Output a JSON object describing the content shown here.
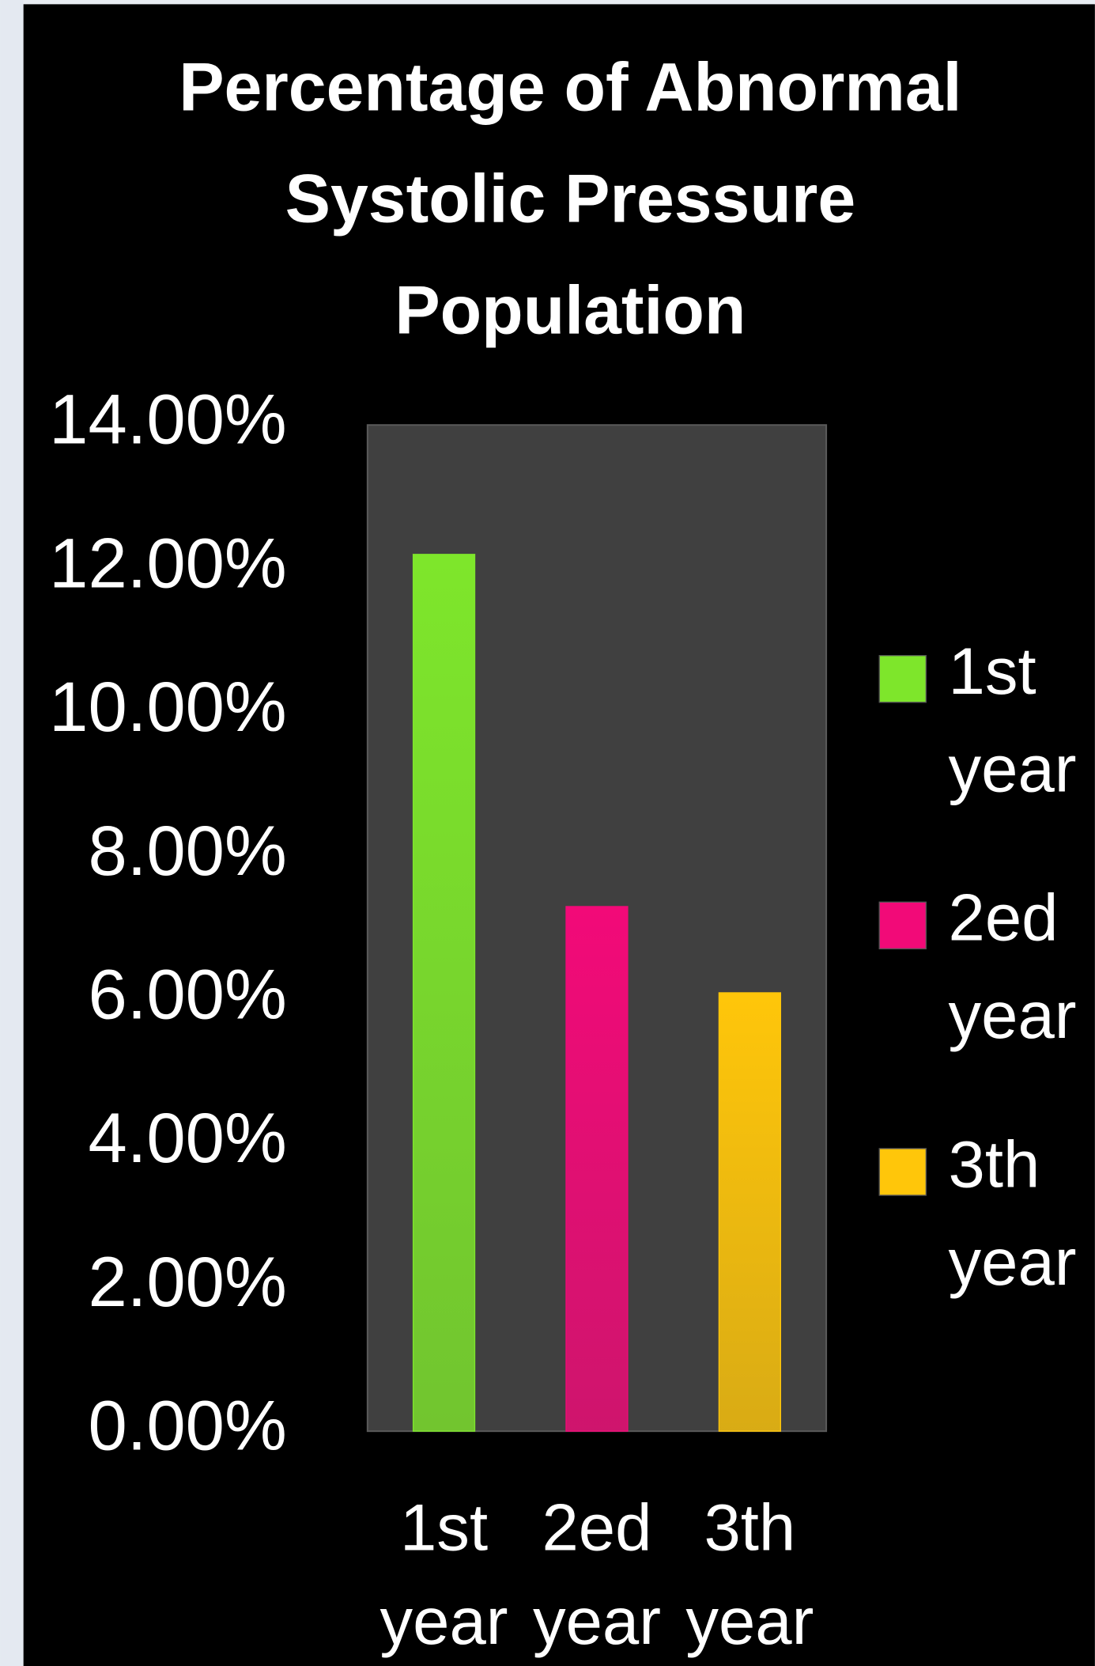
{
  "chart_data": {
    "type": "bar",
    "title": "Percentage of Abnormal Systolic Pressure Population",
    "categories": [
      "1st year",
      "2ed year",
      "3th year"
    ],
    "values": [
      12.2,
      7.3,
      6.1
    ],
    "colors": [
      "#7ee62b",
      "#f20a78",
      "#ffc60a"
    ],
    "ylim": [
      0,
      14
    ],
    "yticks": [
      {
        "value": 0,
        "label": "0.00%"
      },
      {
        "value": 2,
        "label": "2.00%"
      },
      {
        "value": 4,
        "label": "4.00%"
      },
      {
        "value": 6,
        "label": "6.00%"
      },
      {
        "value": 8,
        "label": "8.00%"
      },
      {
        "value": 10,
        "label": "10.00%"
      },
      {
        "value": 12,
        "label": "12.00%"
      },
      {
        "value": 14,
        "label": "14.00%"
      }
    ],
    "grid": false,
    "legend": "right"
  }
}
